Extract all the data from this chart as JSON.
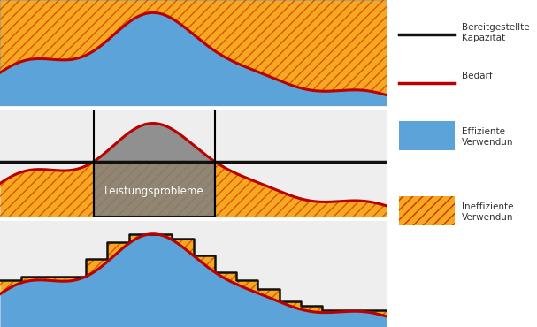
{
  "fig_width": 6.07,
  "fig_height": 3.7,
  "dpi": 100,
  "panel_bg_top": "#5ba3d9",
  "panel_bg_mid": "#eeeeee",
  "panel_bg_bot": "#eeeeee",
  "demand_color": "#bb0000",
  "capacity_color": "#111111",
  "efficient_color": "#5ba3d9",
  "inefficient_color": "#f5a820",
  "hatch_color": "#cc3300",
  "leistung_box_color": "#808080",
  "leistung_text": "Leistungsprobleme",
  "cap_level": 0.52,
  "legend_items": [
    {
      "label": "Bereitgestellte\nKapazität",
      "type": "line",
      "color": "#111111"
    },
    {
      "label": "Bedarf",
      "type": "line",
      "color": "#bb0000"
    },
    {
      "label": "Effiziente\nVerwendun",
      "type": "patch",
      "color": "#5ba3d9"
    },
    {
      "label": "Ineffiziente\nVerwendun",
      "type": "hatch",
      "color": "#f5a820"
    }
  ]
}
